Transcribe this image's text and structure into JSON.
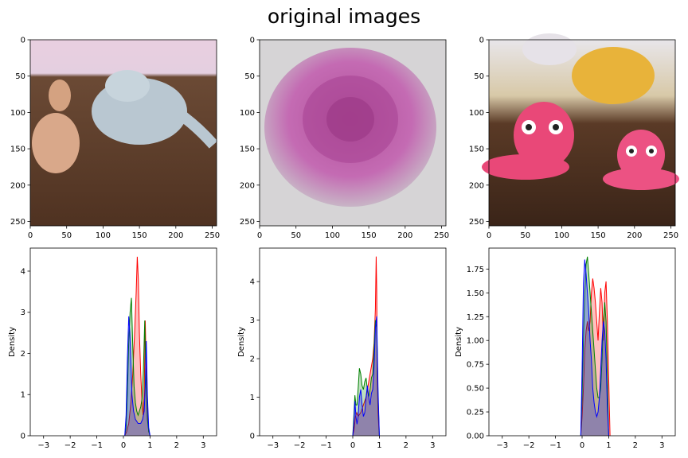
{
  "figure": {
    "title": "original images"
  },
  "colors": {
    "red": "#ff0000",
    "green": "#008000",
    "blue": "#0000ff",
    "axis": "#000000"
  },
  "chart_data": [
    {
      "type": "image",
      "description_icon": "clay-camel-and-elephant-photo",
      "xlim": [
        0,
        256
      ],
      "ylim": [
        256,
        0
      ],
      "xticks": [
        0,
        50,
        100,
        150,
        200,
        250
      ],
      "yticks": [
        0,
        50,
        100,
        150,
        200,
        250
      ]
    },
    {
      "type": "image",
      "description_icon": "clay-rose-photo",
      "xlim": [
        0,
        256
      ],
      "ylim": [
        256,
        0
      ],
      "xticks": [
        0,
        50,
        100,
        150,
        200,
        250
      ],
      "yticks": [
        0,
        50,
        100,
        150,
        200,
        250
      ]
    },
    {
      "type": "image",
      "description_icon": "clay-octopus-photo",
      "xlim": [
        0,
        256
      ],
      "ylim": [
        256,
        0
      ],
      "xticks": [
        0,
        50,
        100,
        150,
        200,
        250
      ],
      "yticks": [
        0,
        50,
        100,
        150,
        200,
        250
      ]
    },
    {
      "type": "area",
      "ylabel": "Density",
      "xlim": [
        -3.5,
        3.5
      ],
      "ylim": [
        0,
        4.56
      ],
      "xticks": [
        -3,
        -2,
        -1,
        0,
        1,
        2,
        3
      ],
      "yticks": [
        0,
        1,
        2,
        3,
        4
      ],
      "ytick_labels": [
        "0",
        "1",
        "2",
        "3",
        "4"
      ],
      "series": [
        {
          "color": "red",
          "x": [
            0.05,
            0.12,
            0.2,
            0.28,
            0.35,
            0.42,
            0.48,
            0.52,
            0.56,
            0.6,
            0.65,
            0.7,
            0.74,
            0.78,
            0.82,
            0.86,
            0.9,
            0.95,
            1.0
          ],
          "y": [
            0,
            0.1,
            0.3,
            0.8,
            1.5,
            2.5,
            3.5,
            4.35,
            3.8,
            2.5,
            1.5,
            0.8,
            0.5,
            1.0,
            2.8,
            1.5,
            0.6,
            0.1,
            0
          ]
        },
        {
          "color": "green",
          "x": [
            0.05,
            0.1,
            0.15,
            0.2,
            0.25,
            0.3,
            0.35,
            0.4,
            0.45,
            0.5,
            0.55,
            0.6,
            0.65,
            0.7,
            0.75,
            0.8,
            0.84,
            0.9,
            0.95,
            1.0
          ],
          "y": [
            0,
            0.2,
            1.0,
            2.3,
            3.0,
            3.35,
            2.2,
            1.2,
            0.8,
            0.6,
            0.5,
            0.6,
            0.7,
            0.9,
            1.6,
            2.8,
            1.6,
            0.4,
            0.1,
            0
          ]
        },
        {
          "color": "blue",
          "x": [
            0.05,
            0.1,
            0.15,
            0.2,
            0.24,
            0.28,
            0.32,
            0.38,
            0.45,
            0.55,
            0.65,
            0.72,
            0.78,
            0.82,
            0.86,
            0.9,
            0.95,
            1.0
          ],
          "y": [
            0,
            0.5,
            1.9,
            2.9,
            2.5,
            1.8,
            1.0,
            0.6,
            0.4,
            0.3,
            0.3,
            0.4,
            0.6,
            1.2,
            2.3,
            1.0,
            0.2,
            0
          ]
        }
      ]
    },
    {
      "type": "area",
      "ylabel": "Density",
      "xlim": [
        -3.5,
        3.5
      ],
      "ylim": [
        0,
        4.87
      ],
      "xticks": [
        -3,
        -2,
        -1,
        0,
        1,
        2,
        3
      ],
      "yticks": [
        0,
        1,
        2,
        3,
        4
      ],
      "ytick_labels": [
        "0",
        "1",
        "2",
        "3",
        "4"
      ],
      "series": [
        {
          "color": "red",
          "x": [
            0,
            0.05,
            0.1,
            0.15,
            0.2,
            0.3,
            0.4,
            0.5,
            0.6,
            0.7,
            0.75,
            0.8,
            0.85,
            0.88,
            0.9,
            0.92,
            0.95,
            0.98,
            1.0
          ],
          "y": [
            0,
            0.15,
            0.5,
            0.6,
            0.5,
            0.6,
            0.8,
            1.0,
            1.4,
            1.8,
            2.0,
            2.4,
            3.3,
            4.65,
            3.8,
            1.5,
            0.6,
            0.2,
            0
          ]
        },
        {
          "color": "green",
          "x": [
            0,
            0.04,
            0.08,
            0.12,
            0.16,
            0.2,
            0.25,
            0.3,
            0.35,
            0.4,
            0.45,
            0.5,
            0.55,
            0.6,
            0.65,
            0.7,
            0.75,
            0.8,
            0.85,
            0.9,
            0.95,
            1.0
          ],
          "y": [
            0,
            0.5,
            1.05,
            0.8,
            0.8,
            1.2,
            1.75,
            1.6,
            1.3,
            1.2,
            1.4,
            1.5,
            1.2,
            1.0,
            1.2,
            1.5,
            1.6,
            2.3,
            3.0,
            2.8,
            1.0,
            0
          ]
        },
        {
          "color": "blue",
          "x": [
            0,
            0.04,
            0.08,
            0.12,
            0.16,
            0.2,
            0.25,
            0.3,
            0.35,
            0.4,
            0.45,
            0.5,
            0.55,
            0.6,
            0.65,
            0.7,
            0.75,
            0.8,
            0.85,
            0.9,
            0.95,
            1.0
          ],
          "y": [
            0,
            0.3,
            0.9,
            0.5,
            0.3,
            0.5,
            1.0,
            1.2,
            0.8,
            0.5,
            0.6,
            1.0,
            1.3,
            1.0,
            0.8,
            1.1,
            1.2,
            1.8,
            2.8,
            3.1,
            1.2,
            0
          ]
        }
      ]
    },
    {
      "type": "area",
      "ylabel": "Density",
      "xlim": [
        -3.5,
        3.5
      ],
      "ylim": [
        0,
        1.97
      ],
      "xticks": [
        -3,
        -2,
        -1,
        0,
        1,
        2,
        3
      ],
      "yticks": [
        0,
        0.25,
        0.5,
        0.75,
        1.0,
        1.25,
        1.5,
        1.75
      ],
      "ytick_labels": [
        "0.00",
        "0.25",
        "0.50",
        "0.75",
        "1.00",
        "1.25",
        "1.50",
        "1.75"
      ],
      "series": [
        {
          "color": "red",
          "x": [
            -0.05,
            0.0,
            0.05,
            0.1,
            0.15,
            0.2,
            0.25,
            0.3,
            0.35,
            0.4,
            0.45,
            0.5,
            0.55,
            0.6,
            0.65,
            0.7,
            0.75,
            0.8,
            0.85,
            0.9,
            0.95,
            1.0,
            1.05
          ],
          "y": [
            0,
            0.2,
            0.5,
            0.9,
            1.1,
            1.2,
            1.1,
            1.2,
            1.5,
            1.65,
            1.55,
            1.4,
            1.2,
            1.0,
            1.3,
            1.55,
            1.4,
            1.0,
            1.5,
            1.62,
            1.2,
            0.6,
            0
          ]
        },
        {
          "color": "green",
          "x": [
            -0.05,
            0.0,
            0.05,
            0.1,
            0.15,
            0.2,
            0.25,
            0.3,
            0.35,
            0.4,
            0.45,
            0.5,
            0.55,
            0.6,
            0.65,
            0.7,
            0.75,
            0.8,
            0.85,
            0.9,
            0.95,
            1.0
          ],
          "y": [
            0,
            0.4,
            1.0,
            1.5,
            1.8,
            1.88,
            1.7,
            1.5,
            1.3,
            1.1,
            0.9,
            0.7,
            0.5,
            0.4,
            0.4,
            0.5,
            0.8,
            1.2,
            1.4,
            1.2,
            0.6,
            0
          ]
        },
        {
          "color": "blue",
          "x": [
            -0.05,
            0.0,
            0.05,
            0.1,
            0.15,
            0.2,
            0.25,
            0.3,
            0.35,
            0.4,
            0.45,
            0.5,
            0.55,
            0.6,
            0.65,
            0.7,
            0.75,
            0.8,
            0.85,
            0.9,
            0.95,
            1.0
          ],
          "y": [
            0,
            0.7,
            1.6,
            1.85,
            1.7,
            1.5,
            1.3,
            1.0,
            0.8,
            0.5,
            0.35,
            0.25,
            0.2,
            0.25,
            0.4,
            0.7,
            1.0,
            1.2,
            1.1,
            0.8,
            0.3,
            0
          ]
        }
      ]
    }
  ]
}
